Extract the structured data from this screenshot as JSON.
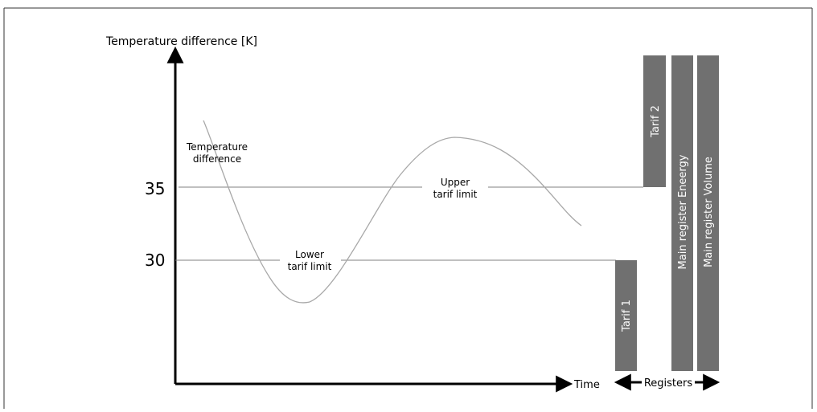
{
  "diagram": {
    "y_axis_label": "Temperature difference [K]",
    "x_axis_label": "Time",
    "ticks": {
      "upper": "35",
      "lower": "30"
    },
    "curve_label_line1": "Temperature",
    "curve_label_line2": "difference",
    "upper_limit_label_line1": "Upper",
    "upper_limit_label_line2": "tarif limit",
    "lower_limit_label_line1": "Lower",
    "lower_limit_label_line2": "tarif limit",
    "registers": {
      "tarif_1": "Tarif 1",
      "tarif_2": "Tarif 2",
      "main_energy": "Main register Eneergy",
      "main_volume": "Main register Volume",
      "bracket_label": "Registers"
    },
    "colors": {
      "register_bar": "#707070",
      "curve": "#a8a8a8",
      "limit_line": "#808080",
      "axis": "#000000"
    }
  }
}
